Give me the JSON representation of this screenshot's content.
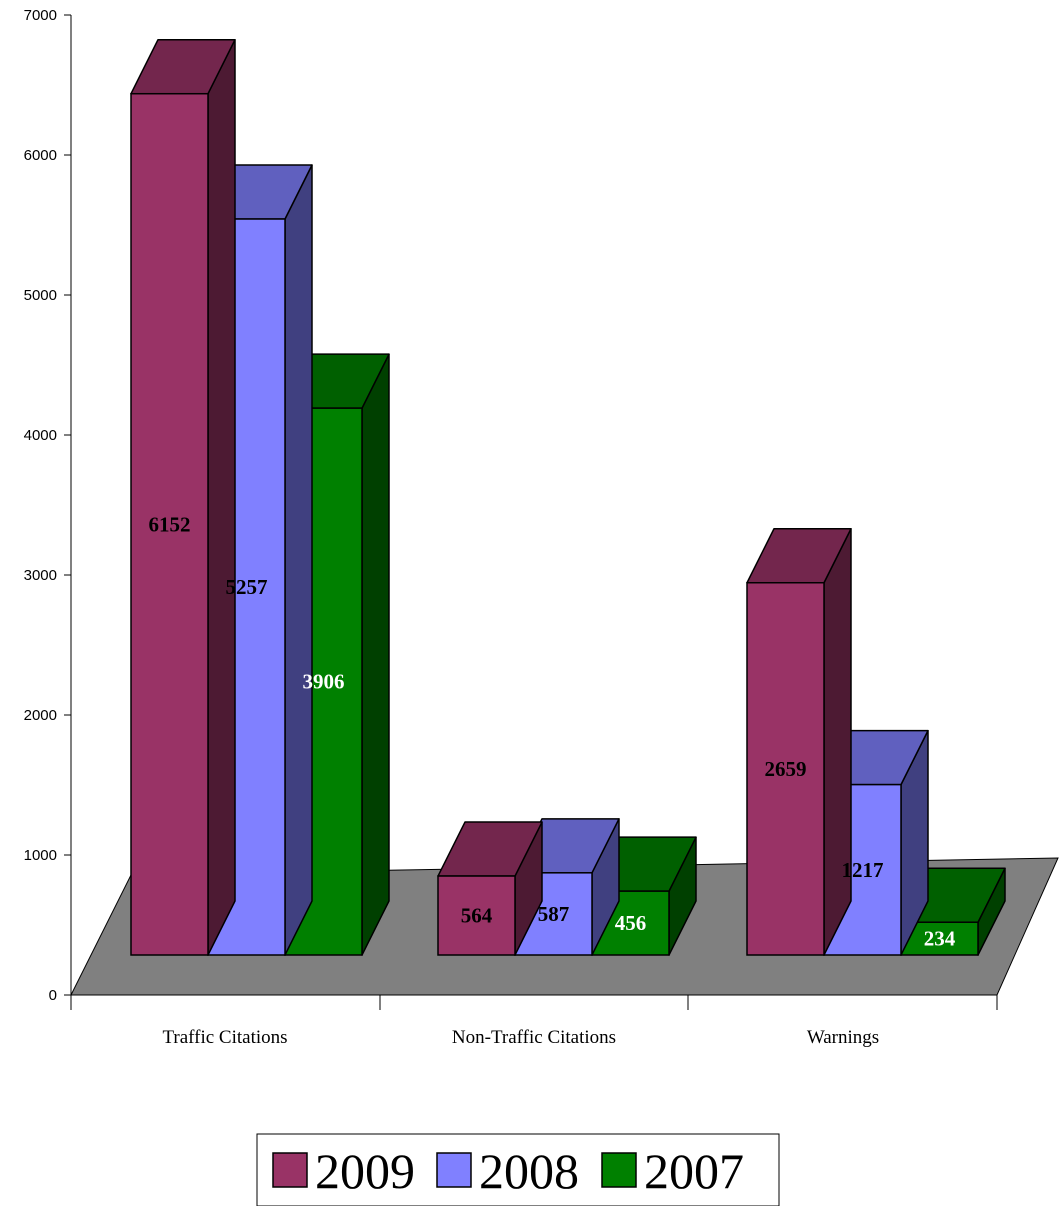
{
  "chart_data": {
    "type": "bar",
    "style": "3d-clustered-column",
    "categories": [
      "Traffic Citations",
      "Non-Traffic Citations",
      "Warnings"
    ],
    "series": [
      {
        "name": "2009",
        "values": [
          6152,
          564,
          2659
        ],
        "color": "#993366",
        "label_color": "#000000"
      },
      {
        "name": "2008",
        "values": [
          5257,
          587,
          1217
        ],
        "color": "#8080ff",
        "label_color": "#000000"
      },
      {
        "name": "2007",
        "values": [
          3906,
          456,
          234
        ],
        "color": "#008000",
        "label_color": "#ffffff"
      }
    ],
    "y_ticks": [
      "0",
      "1000",
      "2000",
      "3000",
      "4000",
      "5000",
      "6000",
      "7000"
    ],
    "ylim": [
      0,
      7000
    ],
    "floor_color": "#808080",
    "legend": {
      "position": "bottom",
      "entries": [
        "2009",
        "2008",
        "2007"
      ]
    },
    "grid": false
  }
}
